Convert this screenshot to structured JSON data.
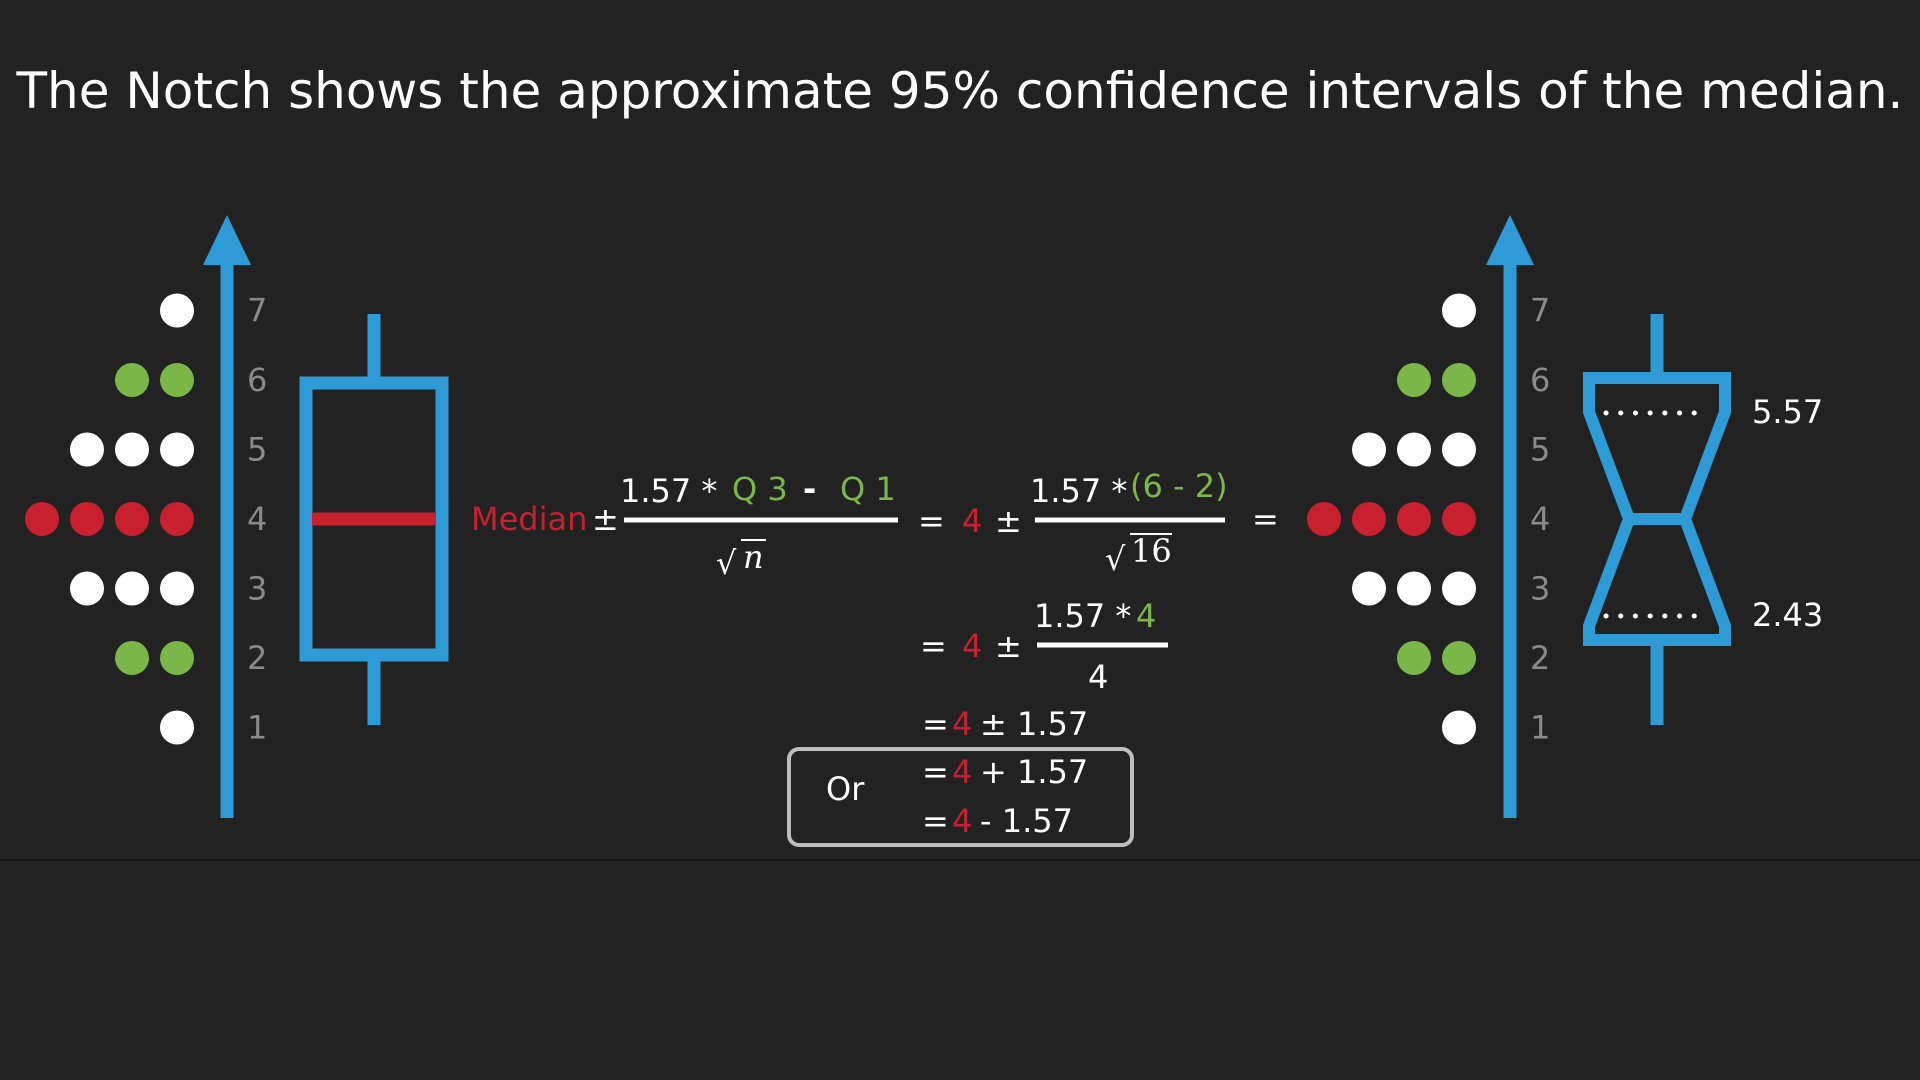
{
  "title": "The Notch shows the approximate 95% confidence intervals of the median.",
  "colors": {
    "background": "#222222",
    "axis": "#2e9ad6",
    "median": "#c8202f",
    "quartile": "#7ab648",
    "point": "#ffffff",
    "tick_label": "#8a8a8a"
  },
  "axis_ticks": [
    "1",
    "2",
    "3",
    "4",
    "5",
    "6",
    "7"
  ],
  "dot_plot": [
    {
      "value": 1,
      "count": 1,
      "color": "white"
    },
    {
      "value": 2,
      "count": 2,
      "color": "green"
    },
    {
      "value": 3,
      "count": 3,
      "color": "white"
    },
    {
      "value": 4,
      "count": 4,
      "color": "red"
    },
    {
      "value": 5,
      "count": 3,
      "color": "white"
    },
    {
      "value": 6,
      "count": 2,
      "color": "green"
    },
    {
      "value": 7,
      "count": 1,
      "color": "white"
    }
  ],
  "boxplot": {
    "whisker_low": 1,
    "q1": 2,
    "median": 4,
    "q3": 6,
    "whisker_high": 7
  },
  "notch": {
    "lower": 2.43,
    "upper": 5.57,
    "lower_label": "2.43",
    "upper_label": "5.57"
  },
  "formula": {
    "median_word": "Median",
    "pm": "±",
    "coef": "1.57 *",
    "q3": "Q 3",
    "minus": "-",
    "q1": "Q 1",
    "n": "n",
    "eq": "=",
    "four": "4",
    "diff": "(6 - 2)",
    "sixteen": "16",
    "line1_tail": "± 1.57",
    "plus_tail": "+ 1.57",
    "minus_tail": "- 1.57",
    "or": "Or"
  }
}
